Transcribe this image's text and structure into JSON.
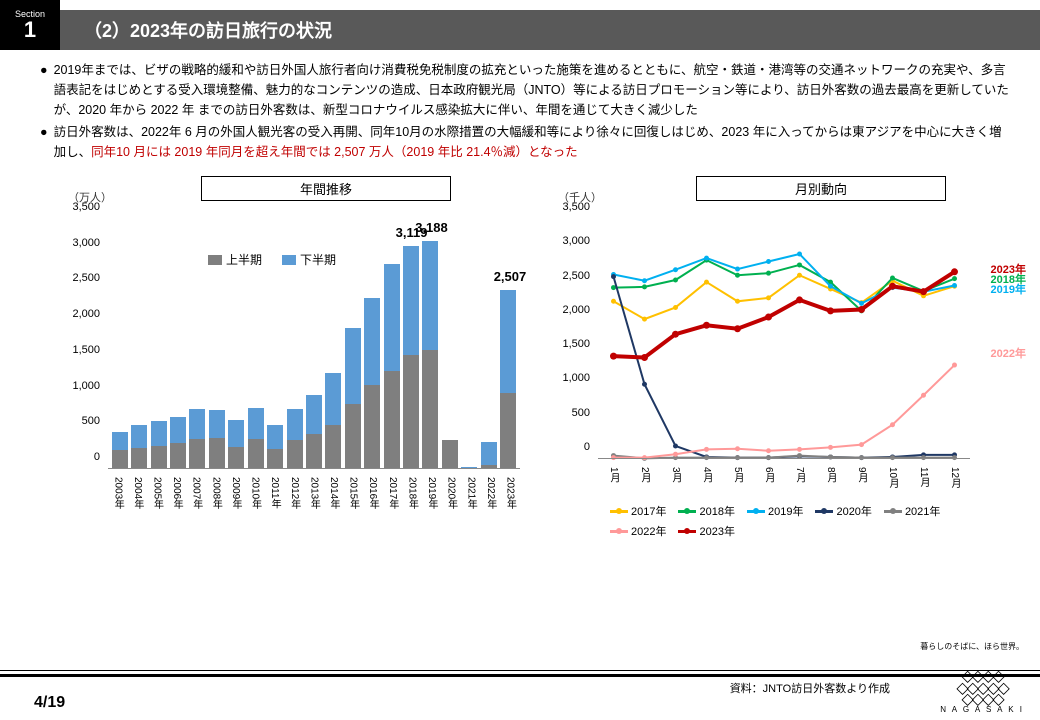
{
  "header": {
    "section_label": "Section",
    "section_num": "1",
    "title": "（2）2023年の訪日旅行の状況"
  },
  "bullets": [
    "2019年までは、ビザの戦略的緩和や訪日外国人旅行者向け消費税免税制度の拡充といった施策を進めるとともに、航空・鉄道・港湾等の交通ネットワークの充実や、多言語表記をはじめとする受入環境整備、魅力的なコンテンツの造成、日本政府観光局（JNTO）等による訪日プロモーション等により、訪日外客数の過去最高を更新していたが、2020 年から 2022 年 までの訪日外客数は、新型コロナウイルス感染拡大に伴い、年間を通じて大きく減少した",
    "訪日外客数は、2022年 6 月の外国人観光客の受入再開、同年10月の水際措置の大幅緩和等により徐々に回復しはじめ、2023 年に入ってからは東アジアを中心に大きく増加し、"
  ],
  "bullet2_red": "同年10 月には 2019 年同月を超え年間では 2,507 万人（2019 年比 21.4％減）となった",
  "bar_chart": {
    "axis_unit": "（万人）",
    "title": "年間推移",
    "ymax": 3500,
    "ytick": 500,
    "legend": {
      "lower": "上半期",
      "upper": "下半期"
    },
    "colors": {
      "lower": "#7f7f7f",
      "upper": "#5b9bd5"
    },
    "categories": [
      "2003年",
      "2004年",
      "2005年",
      "2006年",
      "2007年",
      "2008年",
      "2009年",
      "2010年",
      "2011年",
      "2012年",
      "2013年",
      "2014年",
      "2015年",
      "2016年",
      "2017年",
      "2018年",
      "2019年",
      "2020年",
      "2021年",
      "2022年",
      "2023年"
    ],
    "lower": [
      260,
      300,
      320,
      360,
      420,
      430,
      310,
      420,
      280,
      400,
      490,
      620,
      910,
      1170,
      1370,
      1590,
      1660,
      400,
      10,
      50,
      1070
    ],
    "upper": [
      260,
      310,
      350,
      370,
      420,
      400,
      370,
      440,
      340,
      440,
      550,
      720,
      1060,
      1230,
      1500,
      1530,
      1530,
      10,
      15,
      330,
      1440
    ],
    "callouts": [
      {
        "label": "3,119",
        "x": 15
      },
      {
        "label": "3,188",
        "x": 16
      },
      {
        "label": "2,507",
        "x": 20
      }
    ]
  },
  "line_chart": {
    "axis_unit": "（千人）",
    "title": "月別動向",
    "ymax": 3500,
    "ytick": 500,
    "months": [
      "1月",
      "2月",
      "3月",
      "4月",
      "5月",
      "6月",
      "7月",
      "8月",
      "9月",
      "10月",
      "11月",
      "12月"
    ],
    "series": [
      {
        "name": "2017年",
        "color": "#ffc000",
        "width": 2,
        "values": [
          2300,
          2040,
          2210,
          2580,
          2300,
          2350,
          2680,
          2480,
          2280,
          2600,
          2380,
          2520
        ]
      },
      {
        "name": "2018年",
        "color": "#00b050",
        "width": 2,
        "values": [
          2500,
          2510,
          2610,
          2900,
          2680,
          2710,
          2830,
          2580,
          2160,
          2640,
          2450,
          2630
        ]
      },
      {
        "name": "2019年",
        "color": "#00b0f0",
        "width": 2,
        "values": [
          2690,
          2600,
          2760,
          2930,
          2770,
          2880,
          2990,
          2520,
          2270,
          2500,
          2440,
          2530
        ]
      },
      {
        "name": "2020年",
        "color": "#1f3864",
        "width": 2,
        "values": [
          2660,
          1090,
          190,
          30,
          20,
          20,
          40,
          30,
          20,
          30,
          60,
          60
        ]
      },
      {
        "name": "2021年",
        "color": "#808080",
        "width": 2,
        "values": [
          50,
          10,
          20,
          20,
          20,
          20,
          50,
          30,
          20,
          20,
          20,
          20
        ]
      },
      {
        "name": "2022年",
        "color": "#ff9999",
        "width": 2,
        "values": [
          20,
          20,
          70,
          140,
          150,
          120,
          140,
          170,
          210,
          500,
          930,
          1370
        ]
      },
      {
        "name": "2023年",
        "color": "#c00000",
        "width": 4,
        "values": [
          1500,
          1480,
          1820,
          1950,
          1900,
          2070,
          2320,
          2160,
          2180,
          2520,
          2440,
          2730
        ]
      }
    ],
    "end_labels": [
      {
        "text": "2023年",
        "color": "#c00000",
        "y": 2730
      },
      {
        "text": "2018年",
        "color": "#00b050",
        "y": 2580
      },
      {
        "text": "2019年",
        "color": "#00b0f0",
        "y": 2440
      },
      {
        "text": "2022年",
        "color": "#ff9999",
        "y": 1500
      }
    ]
  },
  "footer": {
    "page": "4",
    "total": "19",
    "source": "資料：JNTO訪日外客数より作成",
    "tagline": "暮らしのそばに、ほら世界。",
    "logo_text": "N A G A S A K I"
  }
}
